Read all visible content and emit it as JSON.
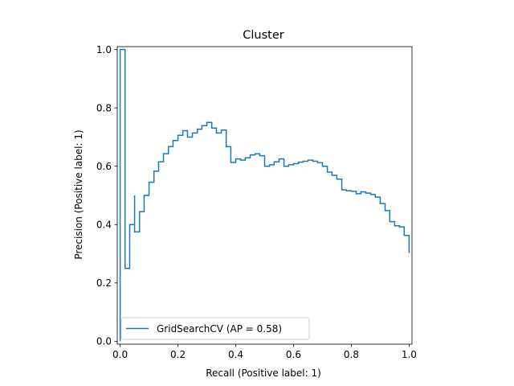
{
  "chart_data": {
    "type": "line",
    "title": "Cluster",
    "xlabel": "Recall (Positive label: 1)",
    "ylabel": "Precision (Positive label: 1)",
    "xlim": [
      -0.01,
      1.01
    ],
    "ylim": [
      -0.01,
      1.01
    ],
    "xticks": [
      0.0,
      0.2,
      0.4,
      0.6,
      0.8,
      1.0
    ],
    "xtick_labels": [
      "0.0",
      "0.2",
      "0.4",
      "0.6",
      "0.8",
      "1.0"
    ],
    "yticks": [
      0.0,
      0.2,
      0.4,
      0.6,
      0.8,
      1.0
    ],
    "ytick_labels": [
      "0.0",
      "0.2",
      "0.4",
      "0.6",
      "0.8",
      "1.0"
    ],
    "grid": false,
    "legend_position": "lower-left",
    "series": [
      {
        "name": "GridSearchCV (AP = 0.58)",
        "color": "#1f77b4",
        "drawstyle": "steps-post",
        "recall": [
          0.0,
          0.0,
          0.017,
          0.033,
          0.05,
          0.05,
          0.067,
          0.083,
          0.1,
          0.117,
          0.133,
          0.15,
          0.167,
          0.183,
          0.2,
          0.217,
          0.233,
          0.25,
          0.267,
          0.283,
          0.3,
          0.317,
          0.333,
          0.35,
          0.367,
          0.383,
          0.4,
          0.417,
          0.433,
          0.45,
          0.467,
          0.483,
          0.5,
          0.517,
          0.533,
          0.55,
          0.567,
          0.583,
          0.6,
          0.617,
          0.633,
          0.65,
          0.667,
          0.683,
          0.7,
          0.717,
          0.733,
          0.75,
          0.767,
          0.783,
          0.8,
          0.817,
          0.833,
          0.85,
          0.867,
          0.883,
          0.9,
          0.917,
          0.933,
          0.95,
          0.967,
          0.983,
          1.0
        ],
        "precision": [
          0.0,
          1.0,
          0.25,
          0.4,
          0.5,
          0.375,
          0.444,
          0.5,
          0.545,
          0.583,
          0.615,
          0.643,
          0.667,
          0.688,
          0.706,
          0.722,
          0.7,
          0.714,
          0.727,
          0.739,
          0.75,
          0.731,
          0.714,
          0.724,
          0.667,
          0.613,
          0.625,
          0.621,
          0.629,
          0.639,
          0.643,
          0.636,
          0.6,
          0.605,
          0.615,
          0.625,
          0.6,
          0.605,
          0.609,
          0.614,
          0.617,
          0.621,
          0.617,
          0.612,
          0.6,
          0.58,
          0.569,
          0.556,
          0.519,
          0.516,
          0.514,
          0.506,
          0.512,
          0.508,
          0.503,
          0.494,
          0.472,
          0.448,
          0.41,
          0.396,
          0.392,
          0.363,
          0.303
        ]
      }
    ]
  }
}
